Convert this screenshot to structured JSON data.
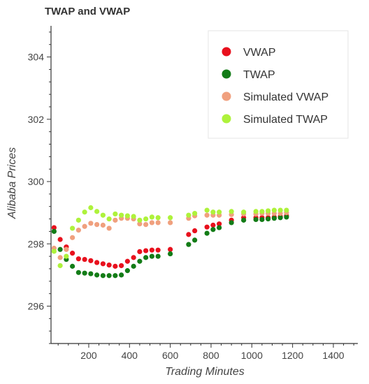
{
  "chart_data": {
    "type": "scatter",
    "title": "TWAP and VWAP",
    "xlabel": "Trading Minutes",
    "ylabel": "Alibaba Prices",
    "xlim": [
      15,
      1520
    ],
    "ylim": [
      294.8,
      305.0
    ],
    "x_ticks": [
      200,
      400,
      600,
      800,
      1000,
      1200,
      1400
    ],
    "y_ticks": [
      296,
      298,
      300,
      302,
      304
    ],
    "legend_position": "top-right",
    "grid": false,
    "series": [
      {
        "name": "VWAP",
        "color": "#e8101d",
        "points": [
          [
            30,
            298.52
          ],
          [
            60,
            298.14
          ],
          [
            90,
            297.9
          ],
          [
            120,
            297.7
          ],
          [
            150,
            297.52
          ],
          [
            180,
            297.5
          ],
          [
            210,
            297.46
          ],
          [
            240,
            297.4
          ],
          [
            270,
            297.36
          ],
          [
            300,
            297.32
          ],
          [
            330,
            297.28
          ],
          [
            360,
            297.3
          ],
          [
            390,
            297.44
          ],
          [
            420,
            297.56
          ],
          [
            450,
            297.75
          ],
          [
            480,
            297.78
          ],
          [
            510,
            297.8
          ],
          [
            540,
            297.8
          ],
          [
            600,
            297.82
          ],
          [
            690,
            298.3
          ],
          [
            720,
            298.42
          ],
          [
            780,
            298.54
          ],
          [
            810,
            298.6
          ],
          [
            840,
            298.64
          ],
          [
            900,
            298.76
          ],
          [
            960,
            298.84
          ],
          [
            1020,
            298.84
          ],
          [
            1050,
            298.84
          ],
          [
            1080,
            298.84
          ],
          [
            1110,
            298.86
          ],
          [
            1140,
            298.88
          ],
          [
            1170,
            298.9
          ]
        ]
      },
      {
        "name": "TWAP",
        "color": "#137c17",
        "points": [
          [
            30,
            298.4
          ],
          [
            60,
            297.82
          ],
          [
            90,
            297.5
          ],
          [
            120,
            297.28
          ],
          [
            150,
            297.08
          ],
          [
            180,
            297.06
          ],
          [
            210,
            297.04
          ],
          [
            240,
            297.0
          ],
          [
            270,
            296.98
          ],
          [
            300,
            296.98
          ],
          [
            330,
            296.98
          ],
          [
            360,
            297.0
          ],
          [
            390,
            297.14
          ],
          [
            420,
            297.28
          ],
          [
            450,
            297.44
          ],
          [
            480,
            297.56
          ],
          [
            510,
            297.6
          ],
          [
            540,
            297.6
          ],
          [
            600,
            297.68
          ],
          [
            690,
            297.98
          ],
          [
            720,
            298.12
          ],
          [
            780,
            298.34
          ],
          [
            810,
            298.46
          ],
          [
            840,
            298.52
          ],
          [
            900,
            298.68
          ],
          [
            960,
            298.76
          ],
          [
            1020,
            298.78
          ],
          [
            1050,
            298.78
          ],
          [
            1080,
            298.8
          ],
          [
            1110,
            298.82
          ],
          [
            1140,
            298.84
          ],
          [
            1170,
            298.86
          ]
        ]
      },
      {
        "name": "Simulated VWAP",
        "color": "#f0a07e",
        "points": [
          [
            30,
            297.86
          ],
          [
            60,
            297.56
          ],
          [
            90,
            297.82
          ],
          [
            120,
            298.2
          ],
          [
            150,
            298.44
          ],
          [
            180,
            298.56
          ],
          [
            210,
            298.66
          ],
          [
            240,
            298.62
          ],
          [
            270,
            298.6
          ],
          [
            300,
            298.5
          ],
          [
            330,
            298.76
          ],
          [
            360,
            298.82
          ],
          [
            390,
            298.82
          ],
          [
            420,
            298.8
          ],
          [
            450,
            298.64
          ],
          [
            480,
            298.62
          ],
          [
            510,
            298.68
          ],
          [
            540,
            298.68
          ],
          [
            600,
            298.68
          ],
          [
            690,
            298.82
          ],
          [
            720,
            298.9
          ],
          [
            780,
            298.92
          ],
          [
            810,
            298.92
          ],
          [
            840,
            298.92
          ],
          [
            900,
            298.94
          ],
          [
            960,
            298.96
          ],
          [
            1020,
            298.96
          ],
          [
            1050,
            298.98
          ],
          [
            1080,
            298.98
          ],
          [
            1110,
            298.98
          ],
          [
            1140,
            298.98
          ],
          [
            1170,
            299.0
          ]
        ]
      },
      {
        "name": "Simulated TWAP",
        "color": "#aef23b",
        "points": [
          [
            30,
            297.76
          ],
          [
            60,
            297.3
          ],
          [
            90,
            297.6
          ],
          [
            120,
            298.5
          ],
          [
            150,
            298.76
          ],
          [
            180,
            299.02
          ],
          [
            210,
            299.16
          ],
          [
            240,
            299.04
          ],
          [
            270,
            298.92
          ],
          [
            300,
            298.8
          ],
          [
            330,
            298.96
          ],
          [
            360,
            298.92
          ],
          [
            390,
            298.9
          ],
          [
            420,
            298.88
          ],
          [
            450,
            298.76
          ],
          [
            480,
            298.8
          ],
          [
            510,
            298.86
          ],
          [
            540,
            298.84
          ],
          [
            600,
            298.84
          ],
          [
            690,
            298.92
          ],
          [
            720,
            298.98
          ],
          [
            780,
            299.08
          ],
          [
            810,
            299.02
          ],
          [
            840,
            299.02
          ],
          [
            900,
            299.04
          ],
          [
            960,
            299.02
          ],
          [
            1020,
            299.04
          ],
          [
            1050,
            299.04
          ],
          [
            1080,
            299.06
          ],
          [
            1110,
            299.08
          ],
          [
            1140,
            299.08
          ],
          [
            1170,
            299.08
          ]
        ]
      }
    ]
  }
}
